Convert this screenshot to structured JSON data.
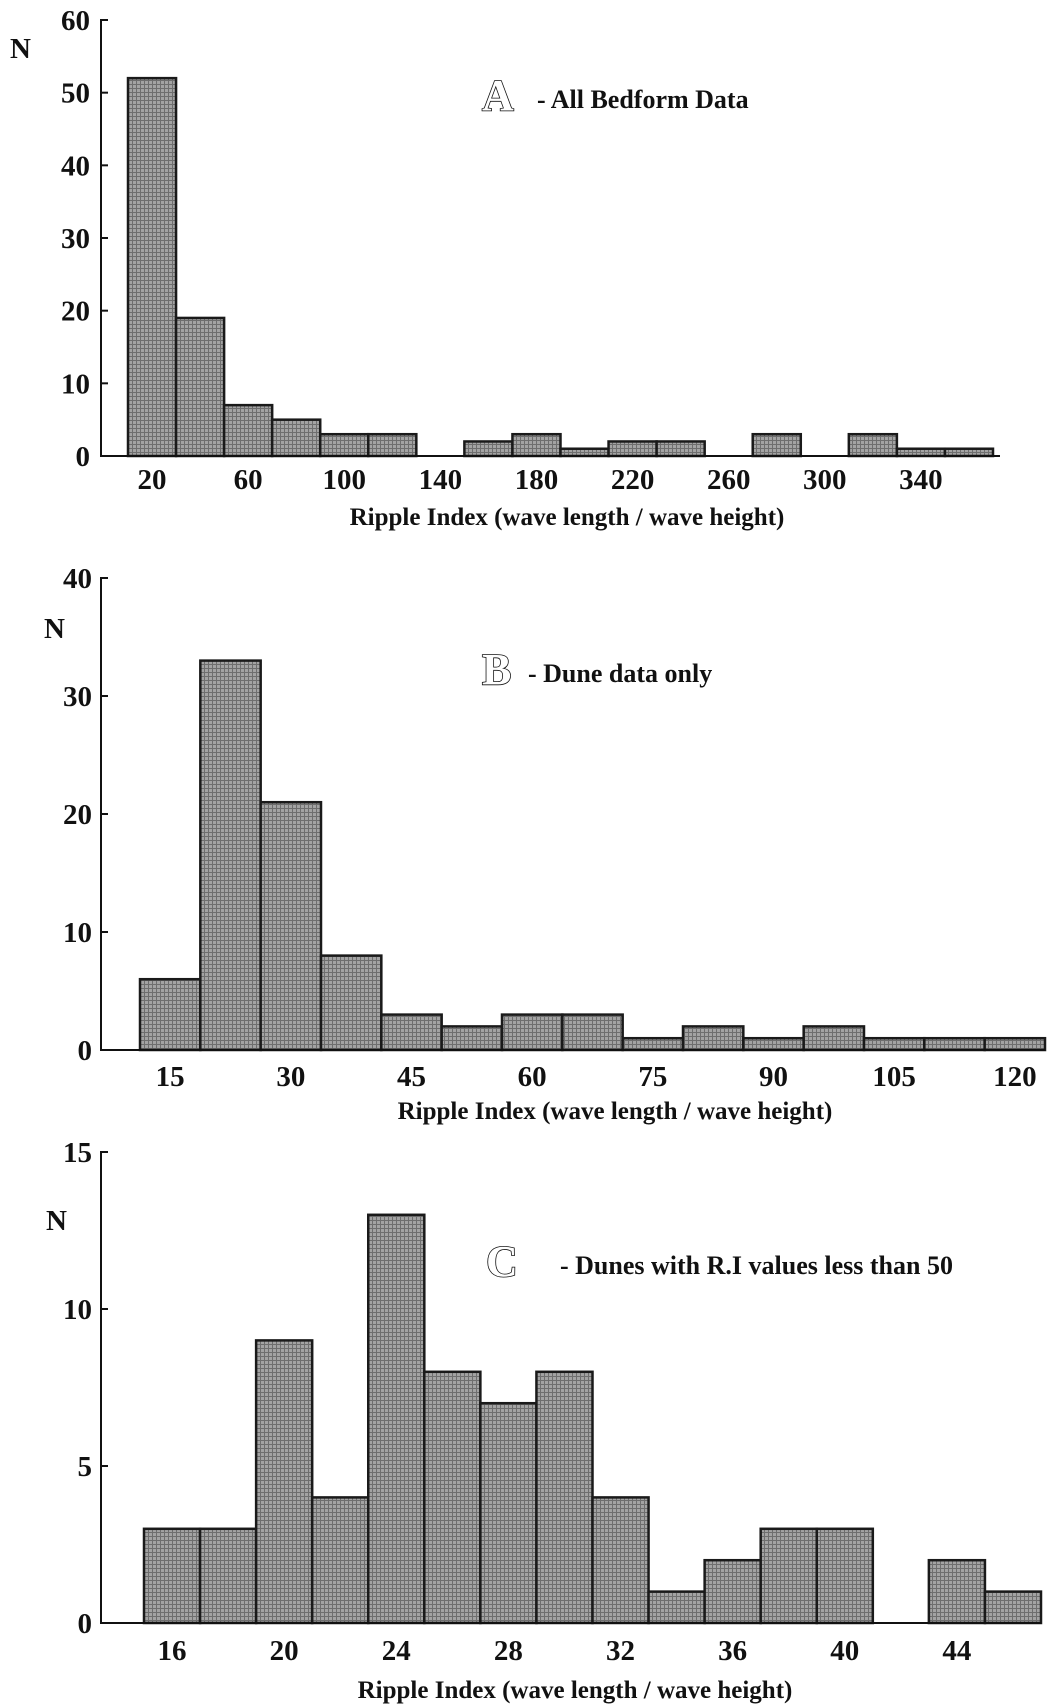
{
  "colors": {
    "bar_fill": "#9a9a9a",
    "bar_edge": "#1a1a1a",
    "axis": "#111111"
  },
  "chart_data": [
    {
      "type": "bar",
      "panel_letter": "A",
      "title": "- All Bedform Data",
      "xlabel": "Ripple Index (wave length / wave height)",
      "ylabel": "N",
      "ylim": [
        0,
        60
      ],
      "yticks": [
        0,
        10,
        20,
        30,
        40,
        50,
        60
      ],
      "xticks": [
        20,
        60,
        100,
        140,
        180,
        220,
        260,
        300,
        340
      ],
      "bin_width": 20,
      "bins": [
        {
          "x0": 10,
          "value": 52
        },
        {
          "x0": 30,
          "value": 19
        },
        {
          "x0": 50,
          "value": 7
        },
        {
          "x0": 70,
          "value": 5
        },
        {
          "x0": 90,
          "value": 3
        },
        {
          "x0": 110,
          "value": 3
        },
        {
          "x0": 150,
          "value": 2
        },
        {
          "x0": 170,
          "value": 3
        },
        {
          "x0": 190,
          "value": 1
        },
        {
          "x0": 210,
          "value": 2
        },
        {
          "x0": 230,
          "value": 2
        },
        {
          "x0": 270,
          "value": 3
        },
        {
          "x0": 310,
          "value": 3
        },
        {
          "x0": 330,
          "value": 1
        },
        {
          "x0": 350,
          "value": 1
        }
      ],
      "grid": false
    },
    {
      "type": "bar",
      "panel_letter": "B",
      "title": "- Dune data only",
      "xlabel": "Ripple Index (wave length / wave height)",
      "ylabel": "N",
      "ylim": [
        0,
        40
      ],
      "yticks": [
        0,
        10,
        20,
        30,
        40
      ],
      "xticks": [
        15,
        30,
        45,
        60,
        75,
        90,
        105,
        120
      ],
      "bin_width": 7.5,
      "bins": [
        {
          "x0": 11.25,
          "value": 6
        },
        {
          "x0": 18.75,
          "value": 33
        },
        {
          "x0": 26.25,
          "value": 21
        },
        {
          "x0": 33.75,
          "value": 8
        },
        {
          "x0": 41.25,
          "value": 3
        },
        {
          "x0": 48.75,
          "value": 2
        },
        {
          "x0": 56.25,
          "value": 3
        },
        {
          "x0": 63.75,
          "value": 3
        },
        {
          "x0": 71.25,
          "value": 1
        },
        {
          "x0": 78.75,
          "value": 2
        },
        {
          "x0": 86.25,
          "value": 1
        },
        {
          "x0": 93.75,
          "value": 2
        },
        {
          "x0": 101.25,
          "value": 1
        },
        {
          "x0": 108.75,
          "value": 1
        },
        {
          "x0": 116.25,
          "value": 1
        }
      ],
      "grid": false
    },
    {
      "type": "bar",
      "panel_letter": "C",
      "title": "- Dunes with R.I values less than 50",
      "xlabel": "Ripple Index (wave length / wave height)",
      "ylabel": "N",
      "ylim": [
        0,
        15
      ],
      "yticks": [
        0,
        5,
        10,
        15
      ],
      "xticks": [
        16,
        20,
        24,
        28,
        32,
        36,
        40,
        44
      ],
      "bin_width": 2,
      "bins": [
        {
          "x0": 15,
          "value": 3
        },
        {
          "x0": 17,
          "value": 3
        },
        {
          "x0": 19,
          "value": 9
        },
        {
          "x0": 21,
          "value": 4
        },
        {
          "x0": 23,
          "value": 13
        },
        {
          "x0": 25,
          "value": 8
        },
        {
          "x0": 27,
          "value": 7
        },
        {
          "x0": 29,
          "value": 8
        },
        {
          "x0": 31,
          "value": 4
        },
        {
          "x0": 33,
          "value": 1
        },
        {
          "x0": 35,
          "value": 2
        },
        {
          "x0": 37,
          "value": 3
        },
        {
          "x0": 39,
          "value": 3
        },
        {
          "x0": 43,
          "value": 2
        },
        {
          "x0": 45,
          "value": 1
        }
      ],
      "grid": false
    }
  ]
}
